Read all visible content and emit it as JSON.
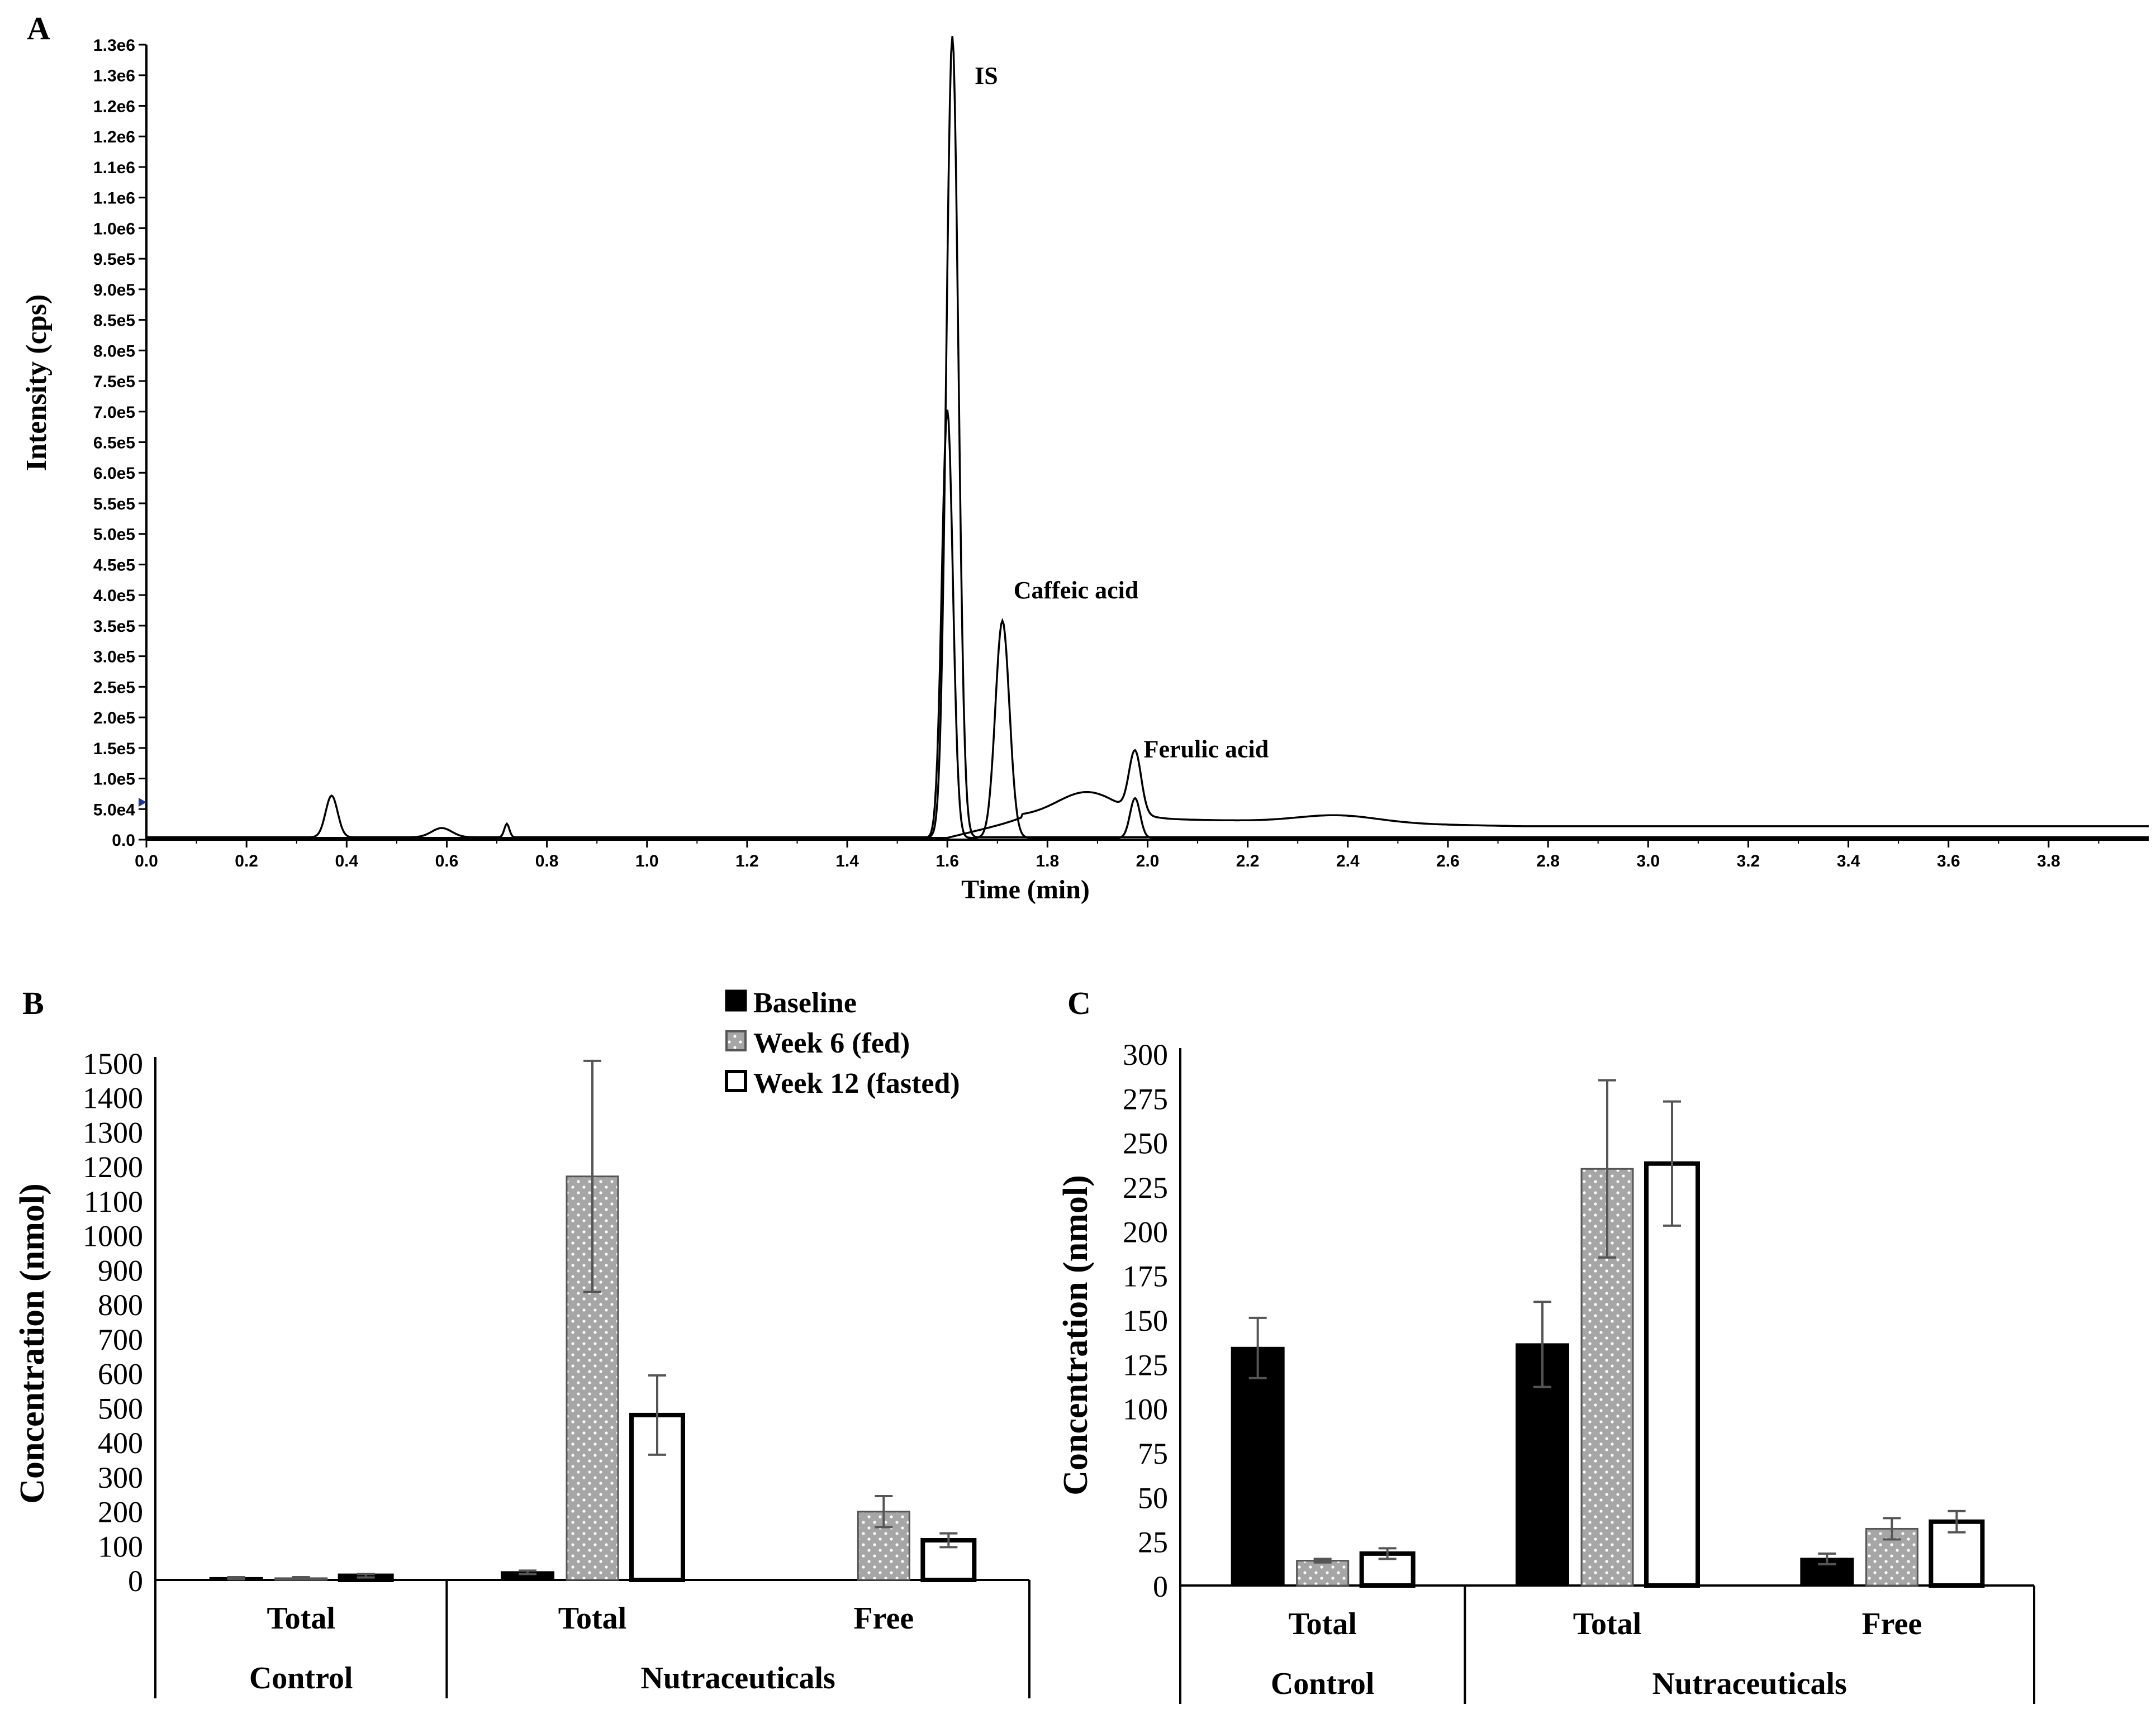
{
  "chart_data": [
    {
      "panel": "A",
      "type": "line",
      "xlabel": "Time (min)",
      "ylabel": "Intensity (cps)",
      "xlim": [
        0,
        4.0
      ],
      "ylim": [
        0,
        1300000
      ],
      "x_ticks": [
        "0.0",
        "0.2",
        "0.4",
        "0.6",
        "0.8",
        "1.0",
        "1.2",
        "1.4",
        "1.6",
        "1.8",
        "2.0",
        "2.2",
        "2.4",
        "2.6",
        "2.8",
        "3.0",
        "3.2",
        "3.4",
        "3.6",
        "3.8"
      ],
      "y_ticks": [
        "0.0",
        "5.0e4",
        "1.0e5",
        "1.5e5",
        "2.0e5",
        "2.5e5",
        "3.0e5",
        "3.5e5",
        "4.0e5",
        "4.5e5",
        "5.0e5",
        "5.5e5",
        "6.0e5",
        "6.5e5",
        "7.0e5",
        "7.5e5",
        "8.0e5",
        "8.5e5",
        "9.0e5",
        "9.5e5",
        "1.0e6",
        "1.1e6",
        "1.1e6",
        "1.2e6",
        "1.2e6",
        "1.3e6",
        "1.3e6"
      ],
      "annotations": [
        {
          "text": "IS",
          "x": 1.61,
          "y": 1300000
        },
        {
          "text": "Caffeic acid",
          "x": 1.71,
          "y": 360000
        },
        {
          "text": "Ferulic acid",
          "x": 1.97,
          "y": 100000
        }
      ],
      "series": [
        {
          "name": "trace-1",
          "peaks": [
            [
              0.37,
              68000,
              0.012
            ],
            [
              0.59,
              15000,
              0.02
            ],
            [
              0.72,
              22000,
              0.005
            ],
            [
              1.61,
              1310000,
              0.012
            ]
          ],
          "baseline": 4000
        },
        {
          "name": "trace-2",
          "peaks": [
            [
              1.6,
              700000,
              0.011
            ],
            [
              1.71,
              355000,
              0.014
            ],
            [
              1.975,
              65000,
              0.01
            ]
          ],
          "baseline": 3000
        },
        {
          "name": "trace-3",
          "peaks": [
            [
              1.975,
              100000,
              0.012
            ],
            [
              1.88,
              42000,
              0.06
            ],
            [
              2.38,
              12000,
              0.08
            ]
          ],
          "baseline": 22000
        }
      ]
    },
    {
      "panel": "B",
      "type": "bar",
      "ylabel": "Concentration (nmol)",
      "ylim": [
        0,
        1500
      ],
      "y_ticks": [
        0,
        100,
        200,
        300,
        400,
        500,
        600,
        700,
        800,
        900,
        1000,
        1100,
        1200,
        1300,
        1400,
        1500
      ],
      "groups": [
        {
          "label": "Total",
          "parent": "Control",
          "values": [
            5,
            5,
            12
          ],
          "errors": [
            3,
            3,
            5
          ]
        },
        {
          "label": "Total",
          "parent": "Nutraceuticals",
          "values": [
            22,
            1170,
            478
          ],
          "errors": [
            5,
            335,
            115
          ]
        },
        {
          "label": "Free",
          "parent": "Nutraceuticals",
          "values": [
            null,
            198,
            115
          ],
          "errors": [
            null,
            45,
            20
          ]
        }
      ],
      "parents": [
        "Control",
        "Nutraceuticals"
      ],
      "legend": [
        "Baseline",
        "Week 6 (fed)",
        "Week 12 (fasted)"
      ]
    },
    {
      "panel": "C",
      "type": "bar",
      "ylabel": "Concentration (nmol)",
      "ylim": [
        0,
        300
      ],
      "y_ticks": [
        0,
        25,
        50,
        75,
        100,
        125,
        150,
        175,
        200,
        225,
        250,
        275,
        300
      ],
      "groups": [
        {
          "label": "Total",
          "parent": "Control",
          "values": [
            134,
            14,
            18
          ],
          "errors": [
            17,
            1,
            3
          ]
        },
        {
          "label": "Total",
          "parent": "Nutraceuticals",
          "values": [
            136,
            235,
            238
          ],
          "errors": [
            24,
            50,
            35
          ]
        },
        {
          "label": "Free",
          "parent": "Nutraceuticals",
          "values": [
            15,
            32,
            36
          ],
          "errors": [
            3,
            6,
            6
          ]
        }
      ],
      "parents": [
        "Control",
        "Nutraceuticals"
      ]
    }
  ],
  "panel_labels": {
    "a": "A",
    "b": "B",
    "c": "C"
  },
  "legend": {
    "baseline": "Baseline",
    "week6": "Week 6 (fed)",
    "week12": "Week 12 (fasted)"
  },
  "colors": {
    "baseline": "#000000",
    "week6": "#a6a6a6",
    "week12": "#ffffff",
    "error": "#555555",
    "axis": "#000000"
  }
}
